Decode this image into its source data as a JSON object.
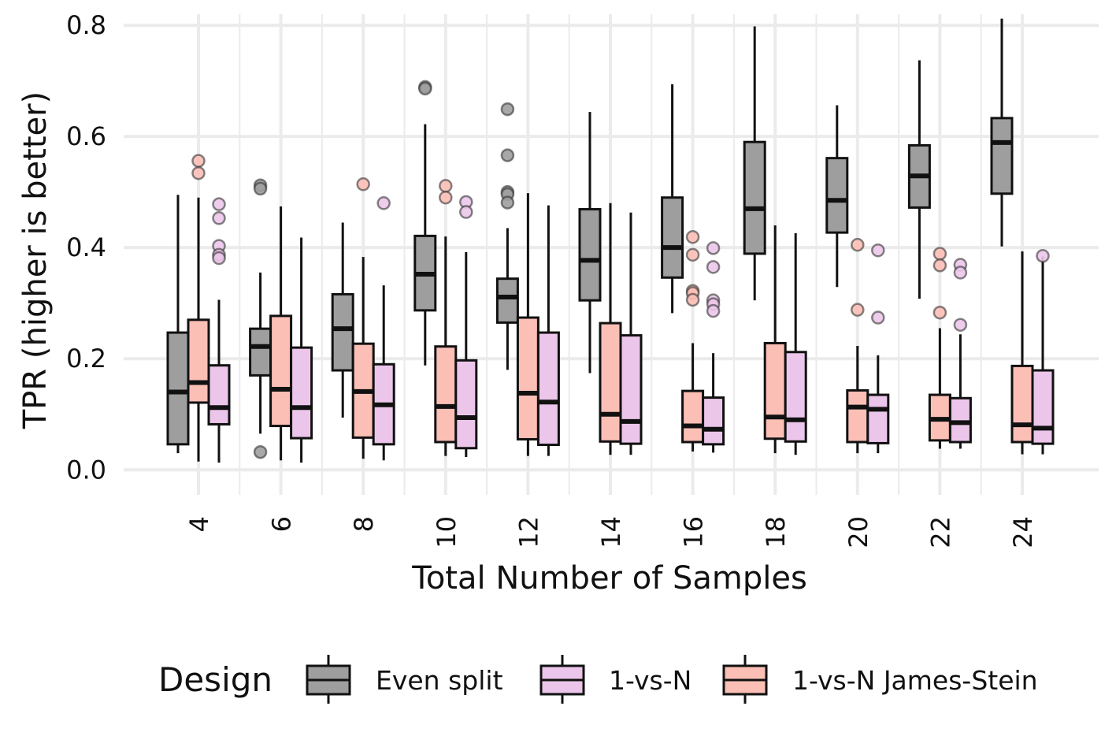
{
  "chart_data": {
    "type": "boxplot",
    "title": "",
    "xlabel": "Total Number of Samples",
    "ylabel": "TPR (higher is better)",
    "ylim": [
      -0.045,
      0.82
    ],
    "yticks": [
      0.0,
      0.2,
      0.4,
      0.6,
      0.8
    ],
    "ytick_labels": [
      "0.0",
      "0.2",
      "0.4",
      "0.6",
      "0.8"
    ],
    "categories": [
      "4",
      "6",
      "8",
      "10",
      "12",
      "14",
      "16",
      "18",
      "20",
      "22",
      "24"
    ],
    "grid": true,
    "legend_position": "bottom",
    "legend": {
      "title": "Design",
      "entries": [
        "Even split",
        "1-vs-N",
        "1-vs-N James-Stein"
      ]
    },
    "colors": {
      "Even split": "#9e9e9e",
      "1-vs-N": "#ecc6ea",
      "1-vs-N James-Stein": "#fbbfb6",
      "grid": "#ebebeb",
      "outline": "#111111"
    },
    "series": [
      {
        "name": "Even split",
        "boxes": [
          {
            "category": "4",
            "lower_whisker": 0.03,
            "q1": 0.046,
            "median": 0.14,
            "q3": 0.247,
            "upper_whisker": 0.495,
            "outliers": []
          },
          {
            "category": "6",
            "lower_whisker": 0.065,
            "q1": 0.17,
            "median": 0.222,
            "q3": 0.254,
            "upper_whisker": 0.355,
            "outliers": [
              0.512,
              0.506,
              0.032
            ]
          },
          {
            "category": "8",
            "lower_whisker": 0.094,
            "q1": 0.179,
            "median": 0.254,
            "q3": 0.316,
            "upper_whisker": 0.445,
            "outliers": []
          },
          {
            "category": "10",
            "lower_whisker": 0.188,
            "q1": 0.287,
            "median": 0.352,
            "q3": 0.421,
            "upper_whisker": 0.622,
            "outliers": [
              0.689,
              0.686
            ]
          },
          {
            "category": "12",
            "lower_whisker": 0.18,
            "q1": 0.265,
            "median": 0.311,
            "q3": 0.344,
            "upper_whisker": 0.435,
            "outliers": [
              0.649,
              0.566,
              0.5,
              0.496,
              0.481
            ]
          },
          {
            "category": "14",
            "lower_whisker": 0.174,
            "q1": 0.305,
            "median": 0.377,
            "q3": 0.469,
            "upper_whisker": 0.644,
            "outliers": []
          },
          {
            "category": "16",
            "lower_whisker": 0.282,
            "q1": 0.346,
            "median": 0.4,
            "q3": 0.49,
            "upper_whisker": 0.694,
            "outliers": []
          },
          {
            "category": "18",
            "lower_whisker": 0.305,
            "q1": 0.389,
            "median": 0.47,
            "q3": 0.59,
            "upper_whisker": 0.798,
            "outliers": []
          },
          {
            "category": "20",
            "lower_whisker": 0.329,
            "q1": 0.427,
            "median": 0.485,
            "q3": 0.561,
            "upper_whisker": 0.656,
            "outliers": []
          },
          {
            "category": "22",
            "lower_whisker": 0.308,
            "q1": 0.472,
            "median": 0.529,
            "q3": 0.584,
            "upper_whisker": 0.737,
            "outliers": []
          },
          {
            "category": "24",
            "lower_whisker": 0.402,
            "q1": 0.497,
            "median": 0.589,
            "q3": 0.633,
            "upper_whisker": 0.812,
            "outliers": []
          }
        ]
      },
      {
        "name": "1-vs-N James-Stein",
        "boxes": [
          {
            "category": "4",
            "lower_whisker": 0.015,
            "q1": 0.121,
            "median": 0.157,
            "q3": 0.27,
            "upper_whisker": 0.49,
            "outliers": [
              0.556,
              0.534
            ]
          },
          {
            "category": "6",
            "lower_whisker": 0.017,
            "q1": 0.079,
            "median": 0.145,
            "q3": 0.277,
            "upper_whisker": 0.474,
            "outliers": []
          },
          {
            "category": "8",
            "lower_whisker": 0.02,
            "q1": 0.058,
            "median": 0.141,
            "q3": 0.227,
            "upper_whisker": 0.383,
            "outliers": [
              0.514
            ]
          },
          {
            "category": "10",
            "lower_whisker": 0.025,
            "q1": 0.05,
            "median": 0.114,
            "q3": 0.222,
            "upper_whisker": 0.42,
            "outliers": [
              0.511,
              0.49
            ]
          },
          {
            "category": "12",
            "lower_whisker": 0.025,
            "q1": 0.055,
            "median": 0.138,
            "q3": 0.274,
            "upper_whisker": 0.498,
            "outliers": []
          },
          {
            "category": "14",
            "lower_whisker": 0.027,
            "q1": 0.051,
            "median": 0.1,
            "q3": 0.264,
            "upper_whisker": 0.48,
            "outliers": []
          },
          {
            "category": "16",
            "lower_whisker": 0.033,
            "q1": 0.05,
            "median": 0.079,
            "q3": 0.142,
            "upper_whisker": 0.228,
            "outliers": [
              0.419,
              0.387,
              0.322,
              0.318,
              0.306
            ]
          },
          {
            "category": "18",
            "lower_whisker": 0.03,
            "q1": 0.056,
            "median": 0.095,
            "q3": 0.228,
            "upper_whisker": 0.44,
            "outliers": []
          },
          {
            "category": "20",
            "lower_whisker": 0.03,
            "q1": 0.05,
            "median": 0.113,
            "q3": 0.143,
            "upper_whisker": 0.223,
            "outliers": [
              0.405,
              0.288
            ]
          },
          {
            "category": "22",
            "lower_whisker": 0.038,
            "q1": 0.053,
            "median": 0.091,
            "q3": 0.135,
            "upper_whisker": 0.255,
            "outliers": [
              0.389,
              0.368,
              0.283
            ]
          },
          {
            "category": "24",
            "lower_whisker": 0.028,
            "q1": 0.05,
            "median": 0.081,
            "q3": 0.187,
            "upper_whisker": 0.393,
            "outliers": []
          }
        ]
      },
      {
        "name": "1-vs-N",
        "boxes": [
          {
            "category": "4",
            "lower_whisker": 0.013,
            "q1": 0.082,
            "median": 0.112,
            "q3": 0.188,
            "upper_whisker": 0.306,
            "outliers": [
              0.478,
              0.453,
              0.403,
              0.387,
              0.381
            ]
          },
          {
            "category": "6",
            "lower_whisker": 0.013,
            "q1": 0.057,
            "median": 0.112,
            "q3": 0.22,
            "upper_whisker": 0.418,
            "outliers": []
          },
          {
            "category": "8",
            "lower_whisker": 0.017,
            "q1": 0.046,
            "median": 0.117,
            "q3": 0.19,
            "upper_whisker": 0.332,
            "outliers": [
              0.48
            ]
          },
          {
            "category": "10",
            "lower_whisker": 0.023,
            "q1": 0.039,
            "median": 0.094,
            "q3": 0.197,
            "upper_whisker": 0.392,
            "outliers": [
              0.482,
              0.464
            ]
          },
          {
            "category": "12",
            "lower_whisker": 0.025,
            "q1": 0.045,
            "median": 0.122,
            "q3": 0.247,
            "upper_whisker": 0.476,
            "outliers": []
          },
          {
            "category": "14",
            "lower_whisker": 0.027,
            "q1": 0.047,
            "median": 0.087,
            "q3": 0.242,
            "upper_whisker": 0.463,
            "outliers": []
          },
          {
            "category": "16",
            "lower_whisker": 0.031,
            "q1": 0.046,
            "median": 0.073,
            "q3": 0.13,
            "upper_whisker": 0.21,
            "outliers": [
              0.399,
              0.365,
              0.305,
              0.298,
              0.286
            ]
          },
          {
            "category": "18",
            "lower_whisker": 0.027,
            "q1": 0.051,
            "median": 0.09,
            "q3": 0.212,
            "upper_whisker": 0.426,
            "outliers": []
          },
          {
            "category": "20",
            "lower_whisker": 0.03,
            "q1": 0.048,
            "median": 0.109,
            "q3": 0.135,
            "upper_whisker": 0.206,
            "outliers": [
              0.395,
              0.274
            ]
          },
          {
            "category": "22",
            "lower_whisker": 0.038,
            "q1": 0.05,
            "median": 0.085,
            "q3": 0.129,
            "upper_whisker": 0.244,
            "outliers": [
              0.369,
              0.355,
              0.261
            ]
          },
          {
            "category": "24",
            "lower_whisker": 0.028,
            "q1": 0.047,
            "median": 0.075,
            "q3": 0.179,
            "upper_whisker": 0.384,
            "outliers": [
              0.385
            ]
          }
        ]
      }
    ]
  }
}
